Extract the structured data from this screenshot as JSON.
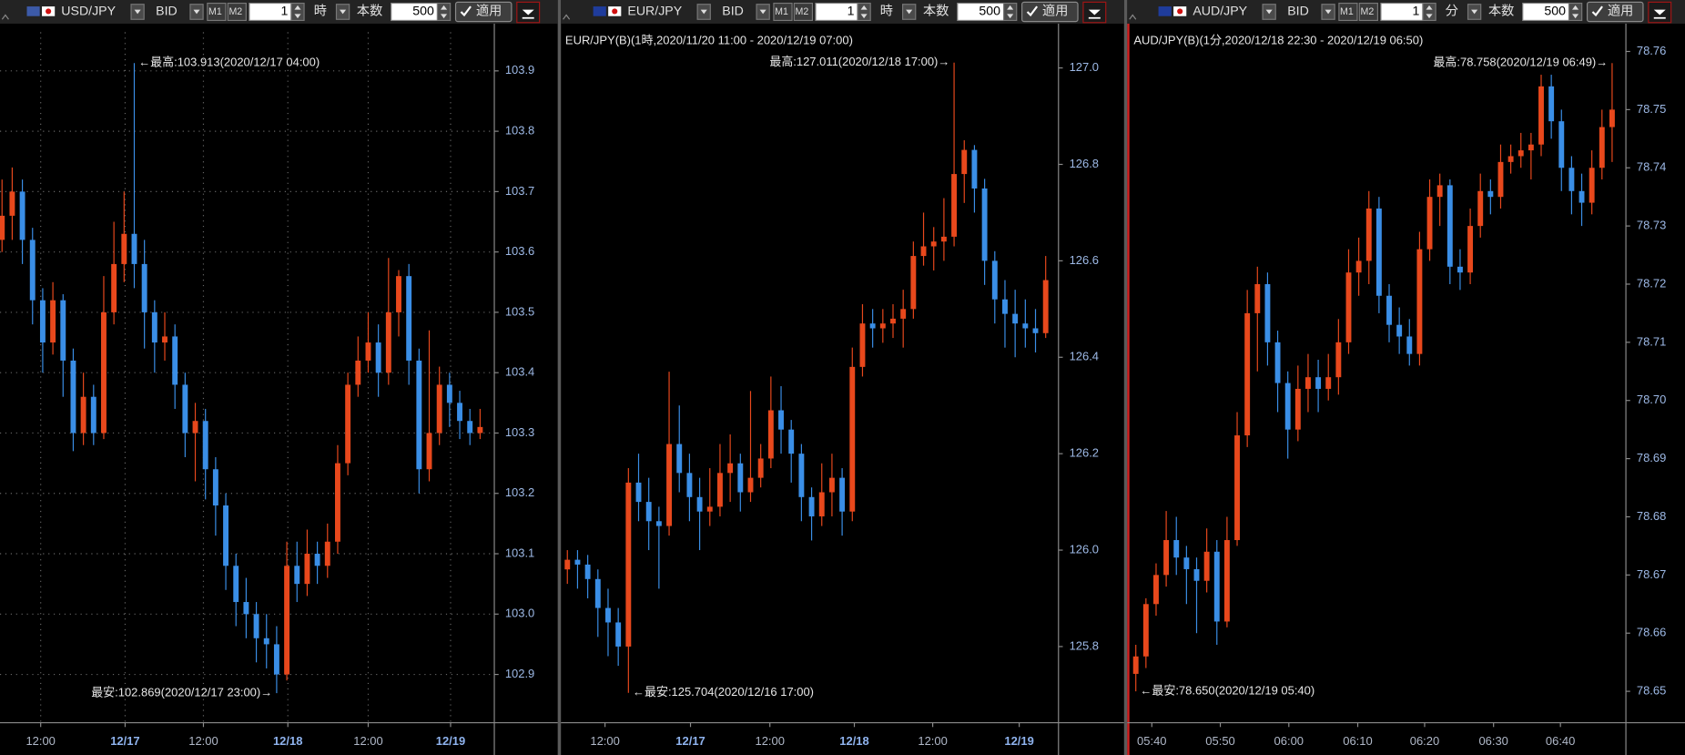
{
  "toolbars": [
    {
      "pair": "USD/JPY",
      "price_type": "BID",
      "m1": "M1",
      "m2": "M2",
      "interval": "1",
      "unit": "時",
      "count_label": "本数",
      "count": "500",
      "apply": "適用"
    },
    {
      "pair": "EUR/JPY",
      "price_type": "BID",
      "m1": "M1",
      "m2": "M2",
      "interval": "1",
      "unit": "時",
      "count_label": "本数",
      "count": "500",
      "apply": "適用"
    },
    {
      "pair": "AUD/JPY",
      "price_type": "BID",
      "m1": "M1",
      "m2": "M2",
      "interval": "1",
      "unit": "分",
      "count_label": "本数",
      "count": "500",
      "apply": "適用"
    }
  ],
  "chart_data": [
    {
      "type": "candlestick",
      "up_color": "#e8481c",
      "down_color": "#3a8ee6",
      "grid": true,
      "high_label": "←最高:103.913(2020/12/17 04:00)",
      "low_label": "最安:102.869(2020/12/17 23:00)→",
      "ylim": [
        102.82,
        103.964
      ],
      "yticks": [
        102.9,
        {
          "value": 103,
          "label": "103.0"
        },
        103.1,
        103.2,
        103.3,
        103.4,
        103.5,
        103.6,
        103.7,
        103.8,
        103.9
      ],
      "xlim": [
        -0.2,
        48.4
      ],
      "xticks": [
        {
          "value": 3.8,
          "label": "12:00"
        },
        {
          "value": 12.1,
          "label": "12/17"
        },
        {
          "value": 19.8,
          "label": "12:00"
        },
        {
          "value": 28.1,
          "label": "12/18"
        },
        {
          "value": 36.0,
          "label": "12:00"
        },
        {
          "value": 44.1,
          "label": "12/19"
        }
      ],
      "candles": [
        [
          103.62,
          103.72,
          103.6,
          103.66
        ],
        [
          103.66,
          103.74,
          103.62,
          103.7
        ],
        [
          103.7,
          103.72,
          103.58,
          103.62
        ],
        [
          103.62,
          103.64,
          103.48,
          103.52
        ],
        [
          103.52,
          103.54,
          103.4,
          103.45
        ],
        [
          103.45,
          103.55,
          103.43,
          103.52
        ],
        [
          103.52,
          103.53,
          103.36,
          103.42
        ],
        [
          103.42,
          103.44,
          103.27,
          103.3
        ],
        [
          103.3,
          103.4,
          103.28,
          103.36
        ],
        [
          103.36,
          103.38,
          103.28,
          103.3
        ],
        [
          103.3,
          103.56,
          103.29,
          103.5
        ],
        [
          103.5,
          103.65,
          103.48,
          103.58
        ],
        [
          103.58,
          103.7,
          103.55,
          103.63
        ],
        [
          103.63,
          103.913,
          103.54,
          103.58
        ],
        [
          103.58,
          103.62,
          103.44,
          103.5
        ],
        [
          103.5,
          103.52,
          103.4,
          103.45
        ],
        [
          103.45,
          103.5,
          103.42,
          103.46
        ],
        [
          103.46,
          103.48,
          103.34,
          103.38
        ],
        [
          103.38,
          103.4,
          103.26,
          103.3
        ],
        [
          103.3,
          103.35,
          103.22,
          103.32
        ],
        [
          103.32,
          103.34,
          103.19,
          103.24
        ],
        [
          103.24,
          103.26,
          103.13,
          103.18
        ],
        [
          103.18,
          103.2,
          103.04,
          103.08
        ],
        [
          103.08,
          103.1,
          102.98,
          103.02
        ],
        [
          103.02,
          103.06,
          102.96,
          103.0
        ],
        [
          103.0,
          103.02,
          102.92,
          102.96
        ],
        [
          102.96,
          103.0,
          102.91,
          102.95
        ],
        [
          102.95,
          102.98,
          102.869,
          102.9
        ],
        [
          102.9,
          103.12,
          102.89,
          103.08
        ],
        [
          103.08,
          103.12,
          103.02,
          103.05
        ],
        [
          103.05,
          103.14,
          103.03,
          103.1
        ],
        [
          103.1,
          103.12,
          103.05,
          103.08
        ],
        [
          103.08,
          103.15,
          103.06,
          103.12
        ],
        [
          103.12,
          103.28,
          103.1,
          103.25
        ],
        [
          103.25,
          103.4,
          103.23,
          103.38
        ],
        [
          103.38,
          103.46,
          103.36,
          103.42
        ],
        [
          103.42,
          103.5,
          103.4,
          103.45
        ],
        [
          103.45,
          103.48,
          103.36,
          103.4
        ],
        [
          103.4,
          103.59,
          103.38,
          103.5
        ],
        [
          103.5,
          103.57,
          103.46,
          103.56
        ],
        [
          103.56,
          103.58,
          103.38,
          103.42
        ],
        [
          103.42,
          103.44,
          103.2,
          103.24
        ],
        [
          103.24,
          103.47,
          103.22,
          103.3
        ],
        [
          103.3,
          103.41,
          103.28,
          103.38
        ],
        [
          103.38,
          103.4,
          103.31,
          103.35
        ],
        [
          103.35,
          103.37,
          103.29,
          103.32
        ],
        [
          103.32,
          103.34,
          103.28,
          103.3
        ],
        [
          103.3,
          103.34,
          103.29,
          103.31
        ]
      ]
    },
    {
      "type": "candlestick",
      "title": "EUR/JPY(B)(1時,2020/11/20 11:00 - 2020/12/19 07:00)",
      "up_color": "#e8481c",
      "down_color": "#3a8ee6",
      "grid": false,
      "high_label": "最高:127.011(2020/12/18 17:00)→",
      "low_label": "←最安:125.704(2020/12/16 17:00)",
      "ylim": [
        125.642,
        127.074
      ],
      "yticks": [
        125.8,
        {
          "value": 126,
          "label": "126.0"
        },
        126.2,
        126.4,
        126.6,
        126.8,
        {
          "value": 127,
          "label": "127.0"
        }
      ],
      "xlim": [
        -0.63,
        48.26
      ],
      "xticks": [
        {
          "value": 3.7,
          "label": "12:00"
        },
        {
          "value": 12.1,
          "label": "12/17"
        },
        {
          "value": 19.9,
          "label": "12:00"
        },
        {
          "value": 28.2,
          "label": "12/18"
        },
        {
          "value": 35.9,
          "label": "12:00"
        },
        {
          "value": 44.4,
          "label": "12/19"
        }
      ],
      "candles": [
        [
          125.96,
          126.0,
          125.93,
          125.98
        ],
        [
          125.98,
          126.0,
          125.92,
          125.97
        ],
        [
          125.97,
          125.99,
          125.9,
          125.94
        ],
        [
          125.94,
          125.96,
          125.82,
          125.88
        ],
        [
          125.88,
          125.92,
          125.78,
          125.85
        ],
        [
          125.85,
          125.88,
          125.76,
          125.8
        ],
        [
          125.8,
          126.17,
          125.704,
          126.14
        ],
        [
          126.14,
          126.2,
          126.06,
          126.1
        ],
        [
          126.1,
          126.15,
          126.0,
          126.06
        ],
        [
          126.06,
          126.09,
          125.92,
          126.05
        ],
        [
          126.05,
          126.37,
          126.03,
          126.22
        ],
        [
          126.22,
          126.3,
          126.12,
          126.16
        ],
        [
          126.16,
          126.2,
          126.06,
          126.11
        ],
        [
          126.11,
          126.15,
          126.0,
          126.08
        ],
        [
          126.08,
          126.17,
          126.05,
          126.09
        ],
        [
          126.09,
          126.22,
          126.07,
          126.16
        ],
        [
          126.16,
          126.24,
          126.1,
          126.18
        ],
        [
          126.18,
          126.2,
          126.08,
          126.12
        ],
        [
          126.12,
          126.33,
          126.1,
          126.15
        ],
        [
          126.15,
          126.22,
          126.13,
          126.19
        ],
        [
          126.19,
          126.36,
          126.17,
          126.29
        ],
        [
          126.29,
          126.34,
          126.2,
          126.25
        ],
        [
          126.25,
          126.27,
          126.14,
          126.2
        ],
        [
          126.2,
          126.22,
          126.06,
          126.11
        ],
        [
          126.11,
          126.13,
          126.02,
          126.07
        ],
        [
          126.07,
          126.18,
          126.05,
          126.12
        ],
        [
          126.12,
          126.2,
          126.07,
          126.15
        ],
        [
          126.15,
          126.17,
          126.03,
          126.08
        ],
        [
          126.08,
          126.42,
          126.06,
          126.38
        ],
        [
          126.38,
          126.51,
          126.36,
          126.47
        ],
        [
          126.47,
          126.5,
          126.42,
          126.46
        ],
        [
          126.46,
          126.5,
          126.43,
          126.47
        ],
        [
          126.47,
          126.51,
          126.44,
          126.48
        ],
        [
          126.48,
          126.54,
          126.42,
          126.5
        ],
        [
          126.5,
          126.64,
          126.48,
          126.61
        ],
        [
          126.61,
          126.7,
          126.59,
          126.63
        ],
        [
          126.63,
          126.67,
          126.58,
          126.64
        ],
        [
          126.64,
          126.73,
          126.6,
          126.65
        ],
        [
          126.65,
          127.011,
          126.63,
          126.78
        ],
        [
          126.78,
          126.85,
          126.72,
          126.83
        ],
        [
          126.83,
          126.84,
          126.7,
          126.75
        ],
        [
          126.75,
          126.77,
          126.55,
          126.6
        ],
        [
          126.6,
          126.62,
          126.47,
          126.52
        ],
        [
          126.52,
          126.56,
          126.42,
          126.49
        ],
        [
          126.49,
          126.54,
          126.4,
          126.47
        ],
        [
          126.47,
          126.52,
          126.42,
          126.46
        ],
        [
          126.46,
          126.5,
          126.41,
          126.45
        ],
        [
          126.45,
          126.61,
          126.44,
          126.56
        ]
      ]
    },
    {
      "type": "candlestick",
      "title": "AUD/JPY(B)(1分,2020/12/18 22:30 - 2020/12/19 06:50)",
      "up_color": "#e8481c",
      "down_color": "#3a8ee6",
      "grid": false,
      "high_label": "最高:78.758(2020/12/19 06:49)→",
      "low_label": "←最安:78.650(2020/12/19 05:40)",
      "ylim": [
        78.6446,
        78.7633
      ],
      "yticks": [
        78.65,
        78.66,
        78.67,
        78.68,
        78.69,
        {
          "value": 78.7,
          "label": "78.70"
        },
        78.71,
        78.72,
        78.73,
        78.74,
        78.75,
        78.76
      ],
      "xlim": [
        -0.63,
        48.36
      ],
      "xticks": [
        {
          "value": 1.58,
          "label": "05:40"
        },
        {
          "value": 8.34,
          "label": "05:50"
        },
        {
          "value": 15.1,
          "label": "06:00"
        },
        {
          "value": 21.9,
          "label": "06:10"
        },
        {
          "value": 28.5,
          "label": "06:20"
        },
        {
          "value": 35.3,
          "label": "06:30"
        },
        {
          "value": 41.9,
          "label": "06:40"
        }
      ],
      "candles": [
        [
          78.653,
          78.658,
          78.65,
          78.656
        ],
        [
          78.656,
          78.666,
          78.654,
          78.665
        ],
        [
          78.665,
          78.672,
          78.663,
          78.67
        ],
        [
          78.67,
          78.681,
          78.668,
          78.676
        ],
        [
          78.676,
          78.68,
          78.67,
          78.673
        ],
        [
          78.673,
          78.675,
          78.665,
          78.671
        ],
        [
          78.671,
          78.673,
          78.66,
          78.669
        ],
        [
          78.669,
          78.678,
          78.667,
          78.674
        ],
        [
          78.674,
          78.676,
          78.658,
          78.662
        ],
        [
          78.662,
          78.68,
          78.661,
          78.676
        ],
        [
          78.676,
          78.698,
          78.675,
          78.694
        ],
        [
          78.694,
          78.719,
          78.692,
          78.715
        ],
        [
          78.715,
          78.723,
          78.705,
          78.72
        ],
        [
          78.72,
          78.722,
          78.706,
          78.71
        ],
        [
          78.71,
          78.712,
          78.698,
          78.703
        ],
        [
          78.703,
          78.705,
          78.69,
          78.695
        ],
        [
          78.695,
          78.706,
          78.693,
          78.702
        ],
        [
          78.702,
          78.708,
          78.698,
          78.704
        ],
        [
          78.704,
          78.707,
          78.698,
          78.702
        ],
        [
          78.702,
          78.708,
          78.7,
          78.704
        ],
        [
          78.704,
          78.714,
          78.701,
          78.71
        ],
        [
          78.71,
          78.726,
          78.708,
          78.722
        ],
        [
          78.722,
          78.728,
          78.718,
          78.724
        ],
        [
          78.724,
          78.736,
          78.72,
          78.733
        ],
        [
          78.733,
          78.735,
          78.715,
          78.718
        ],
        [
          78.718,
          78.72,
          78.71,
          78.713
        ],
        [
          78.713,
          78.716,
          78.708,
          78.711
        ],
        [
          78.711,
          78.714,
          78.706,
          78.708
        ],
        [
          78.708,
          78.729,
          78.706,
          78.726
        ],
        [
          78.726,
          78.738,
          78.724,
          78.735
        ],
        [
          78.735,
          78.739,
          78.73,
          78.737
        ],
        [
          78.737,
          78.738,
          78.72,
          78.723
        ],
        [
          78.723,
          78.726,
          78.719,
          78.722
        ],
        [
          78.722,
          78.733,
          78.72,
          78.73
        ],
        [
          78.73,
          78.739,
          78.728,
          78.736
        ],
        [
          78.736,
          78.738,
          78.732,
          78.735
        ],
        [
          78.735,
          78.744,
          78.733,
          78.741
        ],
        [
          78.741,
          78.744,
          78.739,
          78.742
        ],
        [
          78.742,
          78.746,
          78.74,
          78.743
        ],
        [
          78.743,
          78.746,
          78.738,
          78.744
        ],
        [
          78.744,
          78.756,
          78.742,
          78.754
        ],
        [
          78.754,
          78.756,
          78.745,
          78.748
        ],
        [
          78.748,
          78.75,
          78.736,
          78.74
        ],
        [
          78.74,
          78.742,
          78.732,
          78.736
        ],
        [
          78.736,
          78.739,
          78.73,
          78.734
        ],
        [
          78.734,
          78.743,
          78.732,
          78.74
        ],
        [
          78.74,
          78.75,
          78.738,
          78.747
        ],
        [
          78.747,
          78.758,
          78.741,
          78.75
        ]
      ]
    }
  ]
}
